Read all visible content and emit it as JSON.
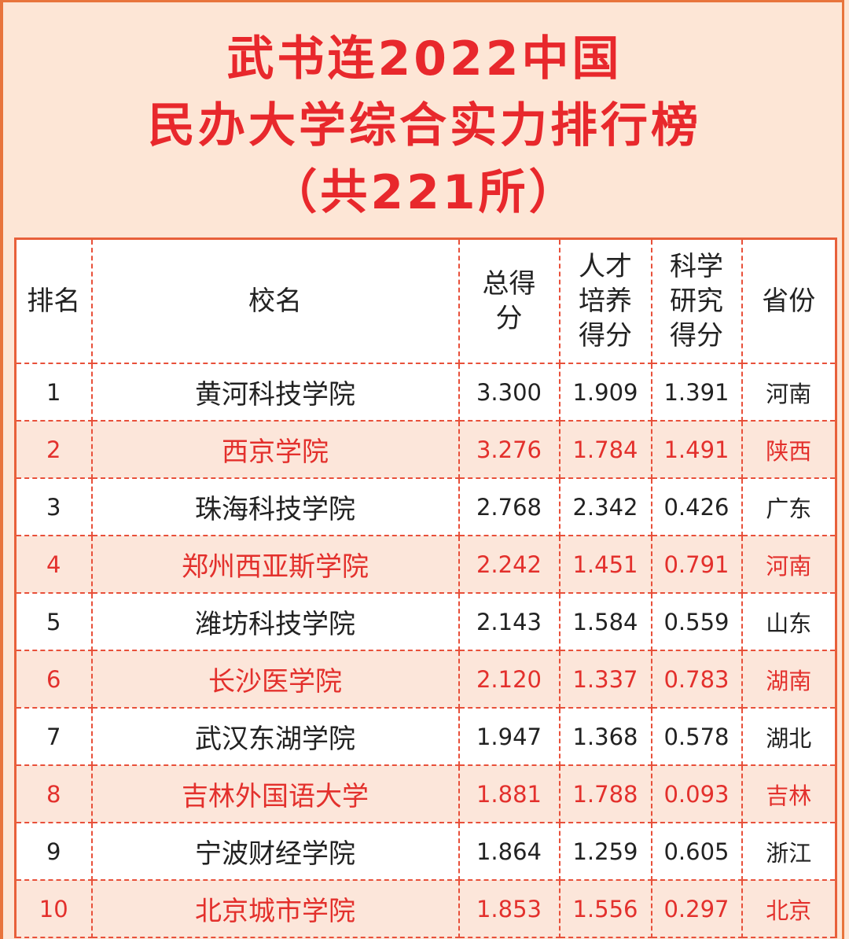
{
  "title": {
    "line1": "武书连2022中国",
    "line2": "民办大学综合实力排行榜",
    "line3": "（共221所）"
  },
  "colors": {
    "accent": "#e8282c",
    "border": "#e8603a",
    "background": "#fde6d6",
    "alt_row": "#fce6da"
  },
  "table": {
    "headers": [
      "排名",
      "校名",
      "总得分",
      "人才培养得分",
      "科学研究得分",
      "省份"
    ],
    "rows": [
      [
        "1",
        "黄河科技学院",
        "3.300",
        "1.909",
        "1.391",
        "河南"
      ],
      [
        "2",
        "西京学院",
        "3.276",
        "1.784",
        "1.491",
        "陕西"
      ],
      [
        "3",
        "珠海科技学院",
        "2.768",
        "2.342",
        "0.426",
        "广东"
      ],
      [
        "4",
        "郑州西亚斯学院",
        "2.242",
        "1.451",
        "0.791",
        "河南"
      ],
      [
        "5",
        "潍坊科技学院",
        "2.143",
        "1.584",
        "0.559",
        "山东"
      ],
      [
        "6",
        "长沙医学院",
        "2.120",
        "1.337",
        "0.783",
        "湖南"
      ],
      [
        "7",
        "武汉东湖学院",
        "1.947",
        "1.368",
        "0.578",
        "湖北"
      ],
      [
        "8",
        "吉林外国语大学",
        "1.881",
        "1.788",
        "0.093",
        "吉林"
      ],
      [
        "9",
        "宁波财经学院",
        "1.864",
        "1.259",
        "0.605",
        "浙江"
      ],
      [
        "10",
        "北京城市学院",
        "1.853",
        "1.556",
        "0.297",
        "北京"
      ]
    ]
  }
}
